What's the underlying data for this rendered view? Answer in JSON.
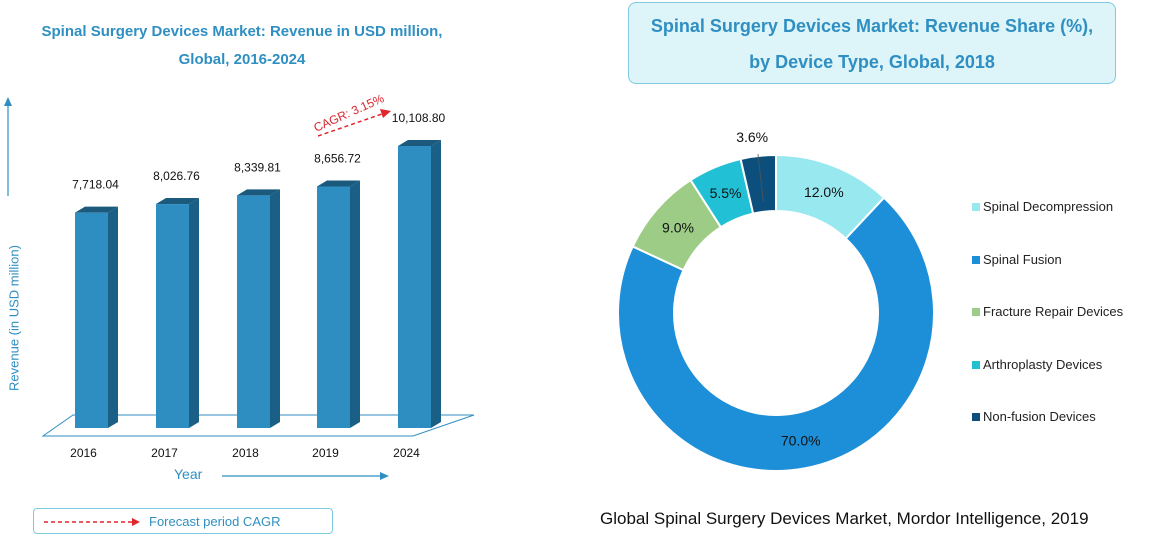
{
  "chart_data": [
    {
      "type": "bar",
      "title": "Spinal Surgery Devices Market: Revenue in USD million, Global, 2016-2024",
      "title_lines": [
        "Spinal Surgery Devices Market: Revenue in USD million,",
        "Global, 2016-2024"
      ],
      "categories": [
        "2016",
        "2017",
        "2018",
        "2019",
        "2024"
      ],
      "values": [
        7718.04,
        8026.76,
        8339.81,
        8656.72,
        10108.8
      ],
      "value_labels": [
        "7,718.04",
        "8,026.76",
        "8,339.81",
        "8,656.72",
        "10,108.80"
      ],
      "xlabel": "Year",
      "ylabel": "Revenue (in USD million)",
      "annotation": "CAGR: 3.15%",
      "legend_label": "Forecast period CAGR",
      "colors": {
        "front": "#2e8ec2",
        "side": "#1a5f85",
        "top": "#1b5a7d"
      }
    },
    {
      "type": "pie",
      "title": "Spinal Surgery Devices Market: Revenue Share (%), by Device Type, Global, 2018",
      "title_lines": [
        "Spinal Surgery Devices Market: Revenue Share (%),",
        "by Device Type, Global, 2018"
      ],
      "labels": [
        "Spinal Decompression",
        "Spinal Fusion",
        "Fracture Repair Devices",
        "Arthroplasty Devices",
        "Non-fusion Devices"
      ],
      "values": [
        12.0,
        70.0,
        9.0,
        5.5,
        3.6
      ],
      "value_labels": [
        "12.0%",
        "70.0%",
        "9.0%",
        "5.5%",
        "3.6%"
      ],
      "colors": [
        "#98e8f0",
        "#1c8fd8",
        "#9ccc86",
        "#22c0d4",
        "#0c4f7d"
      ]
    }
  ],
  "source": "Global Spinal Surgery Devices Market, Mordor Intelligence, 2019"
}
